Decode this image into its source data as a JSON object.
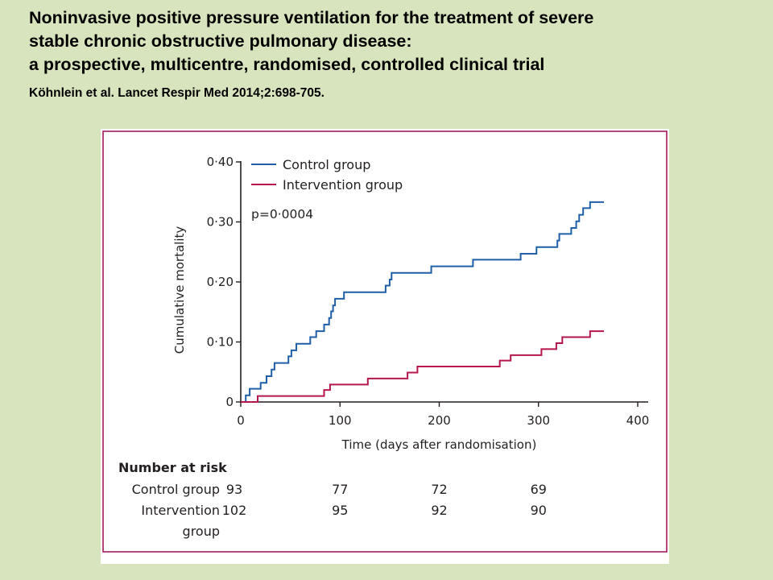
{
  "slide": {
    "title_lines": [
      "Noninvasive positive pressure ventilation for the treatment of severe",
      "stable chronic obstructive pulmonary disease:",
      "a prospective, multicentre, randomised, controlled clinical trial"
    ],
    "citation": "Köhnlein et al. Lancet Respir Med 2014;2:698-705."
  },
  "colors": {
    "background": "#d8e4bd",
    "panel_border": "#a3195b",
    "control": "#1f5fa8",
    "intervention": "#b5174d",
    "text": "#231f20"
  },
  "chart_data": {
    "type": "line",
    "subtype": "step",
    "xlabel": "Time (days after randomisation)",
    "ylabel": "Cumulative mortality",
    "xlim": [
      0,
      400
    ],
    "ylim": [
      0,
      0.4
    ],
    "x_ticks": [
      0,
      100,
      200,
      300,
      400
    ],
    "x_tick_labels": [
      "0",
      "100",
      "200",
      "300",
      "400"
    ],
    "y_ticks": [
      0,
      0.1,
      0.2,
      0.3,
      0.4
    ],
    "y_tick_labels": [
      "0",
      "0·10",
      "0·20",
      "0·30",
      "0·40"
    ],
    "grid": false,
    "legend_position": "top-left",
    "annotation": "p=0·0004",
    "series": [
      {
        "name": "Control group",
        "color": "#1f5fa8",
        "points": [
          [
            0,
            0
          ],
          [
            5,
            0.011
          ],
          [
            9,
            0.022
          ],
          [
            20,
            0.032
          ],
          [
            26,
            0.043
          ],
          [
            31,
            0.054
          ],
          [
            34,
            0.065
          ],
          [
            48,
            0.076
          ],
          [
            51,
            0.086
          ],
          [
            56,
            0.097
          ],
          [
            70,
            0.108
          ],
          [
            76,
            0.118
          ],
          [
            84,
            0.129
          ],
          [
            89,
            0.14
          ],
          [
            91,
            0.151
          ],
          [
            93,
            0.161
          ],
          [
            95,
            0.172
          ],
          [
            104,
            0.183
          ],
          [
            146,
            0.194
          ],
          [
            150,
            0.204
          ],
          [
            152,
            0.215
          ],
          [
            192,
            0.226
          ],
          [
            234,
            0.237
          ],
          [
            282,
            0.247
          ],
          [
            298,
            0.258
          ],
          [
            319,
            0.269
          ],
          [
            321,
            0.28
          ],
          [
            333,
            0.29
          ],
          [
            338,
            0.301
          ],
          [
            341,
            0.312
          ],
          [
            345,
            0.323
          ],
          [
            352,
            0.333
          ],
          [
            366,
            0.333
          ]
        ]
      },
      {
        "name": "Intervention group",
        "color": "#b5174d",
        "points": [
          [
            0,
            0
          ],
          [
            17,
            0.01
          ],
          [
            84,
            0.02
          ],
          [
            90,
            0.029
          ],
          [
            128,
            0.039
          ],
          [
            168,
            0.049
          ],
          [
            178,
            0.059
          ],
          [
            261,
            0.069
          ],
          [
            272,
            0.078
          ],
          [
            303,
            0.088
          ],
          [
            318,
            0.098
          ],
          [
            324,
            0.108
          ],
          [
            352,
            0.118
          ],
          [
            366,
            0.118
          ]
        ]
      }
    ],
    "number_at_risk": {
      "heading": "Number at risk",
      "timepoints": [
        0,
        100,
        200,
        300
      ],
      "rows": [
        {
          "label": [
            "Control group"
          ],
          "values": [
            "93",
            "77",
            "72",
            "69"
          ]
        },
        {
          "label": [
            "Intervention",
            "group"
          ],
          "values": [
            "102",
            "95",
            "92",
            "90"
          ]
        }
      ]
    }
  }
}
